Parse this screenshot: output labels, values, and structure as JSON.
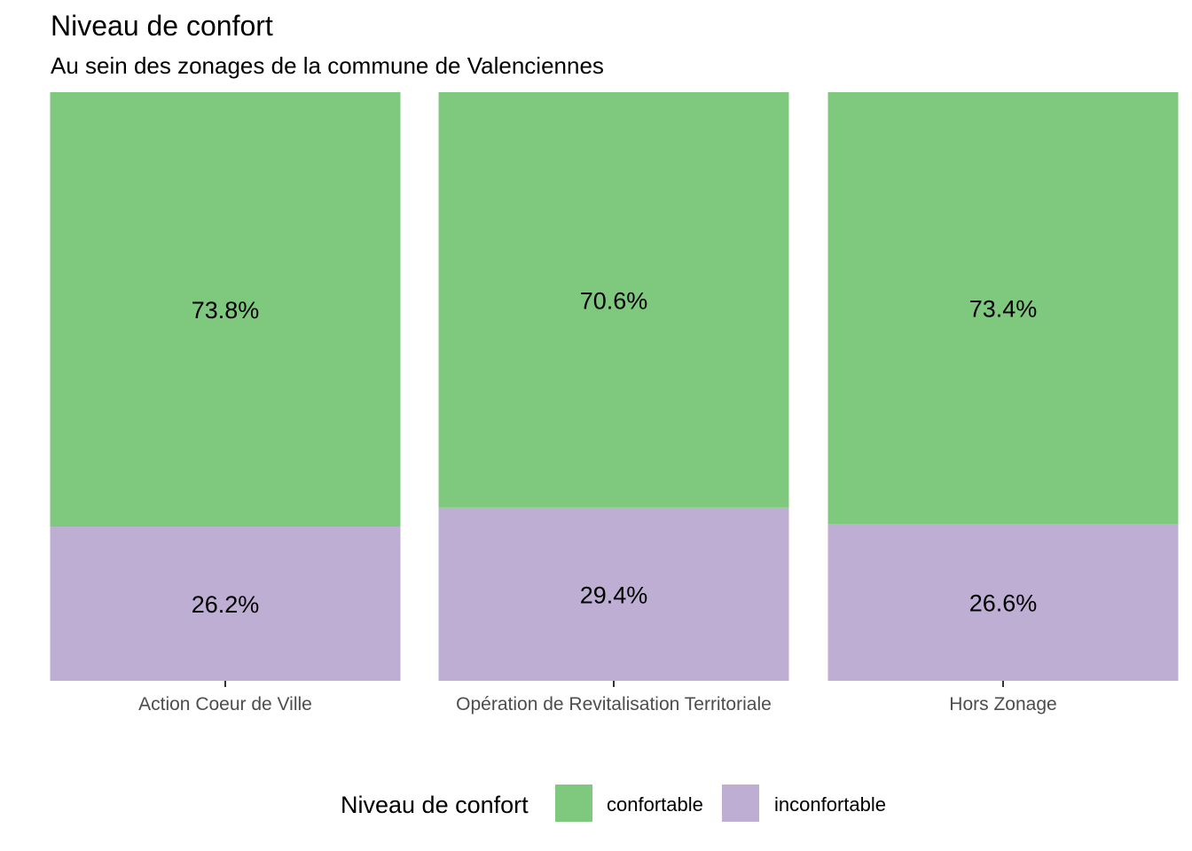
{
  "chart_data": {
    "type": "bar",
    "stacked": true,
    "title": "Niveau de confort",
    "subtitle": "Au sein des zonages de la commune de Valenciennes",
    "categories": [
      "Action Coeur de Ville",
      "Opération de Revitalisation Territoriale",
      "Hors Zonage"
    ],
    "series": [
      {
        "name": "confortable",
        "color": "#7fc97f",
        "values": [
          73.8,
          70.6,
          73.4
        ],
        "labels": [
          "73.8%",
          "70.6%",
          "73.4%"
        ]
      },
      {
        "name": "inconfortable",
        "color": "#beaed4",
        "values": [
          26.2,
          29.4,
          26.6
        ],
        "labels": [
          "26.2%",
          "29.4%",
          "26.6%"
        ]
      }
    ],
    "ylim": [
      0,
      100
    ],
    "grid": false,
    "legend": {
      "title": "Niveau de confort",
      "position": "bottom"
    }
  }
}
